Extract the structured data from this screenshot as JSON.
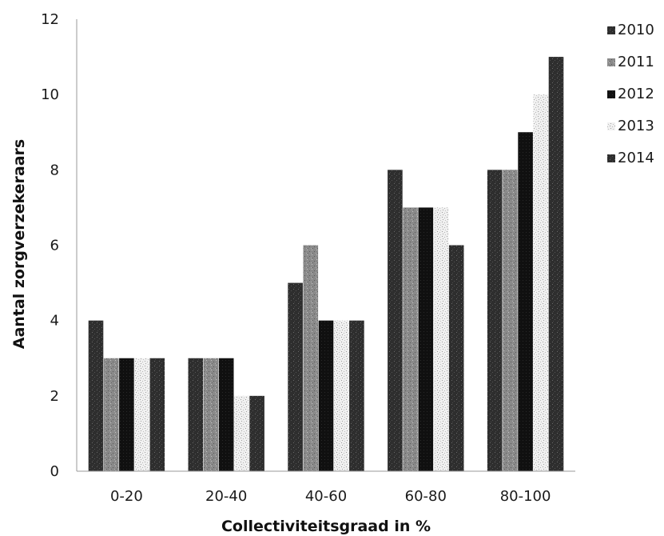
{
  "chart_data": {
    "type": "bar",
    "categories": [
      "0-20",
      "20-40",
      "40-60",
      "60-80",
      "80-100"
    ],
    "series": [
      {
        "name": "2010",
        "values": [
          4,
          3,
          5,
          8,
          8
        ],
        "color": "#333333",
        "pattern": "dark-speckle"
      },
      {
        "name": "2011",
        "values": [
          3,
          3,
          6,
          7,
          8
        ],
        "color": "#8c8c8c",
        "pattern": "gray-speckle"
      },
      {
        "name": "2012",
        "values": [
          3,
          3,
          4,
          7,
          9
        ],
        "color": "#111111",
        "pattern": "solid-dark"
      },
      {
        "name": "2013",
        "values": [
          3,
          2,
          4,
          7,
          10
        ],
        "color": "#f2f2f2",
        "pattern": "light-speckle"
      },
      {
        "name": "2014",
        "values": [
          3,
          2,
          4,
          6,
          11
        ],
        "color": "#1a1a1a",
        "pattern": "dark-speckle"
      }
    ],
    "title": "",
    "xlabel": "Collectiviteitsgraad in %",
    "ylabel": "Aantal zorgverzekeraars",
    "ylim": [
      0,
      12
    ],
    "yticks": [
      "0",
      "2",
      "4",
      "6",
      "8",
      "10",
      "12"
    ],
    "grid": false,
    "legend_position": "top-right"
  }
}
